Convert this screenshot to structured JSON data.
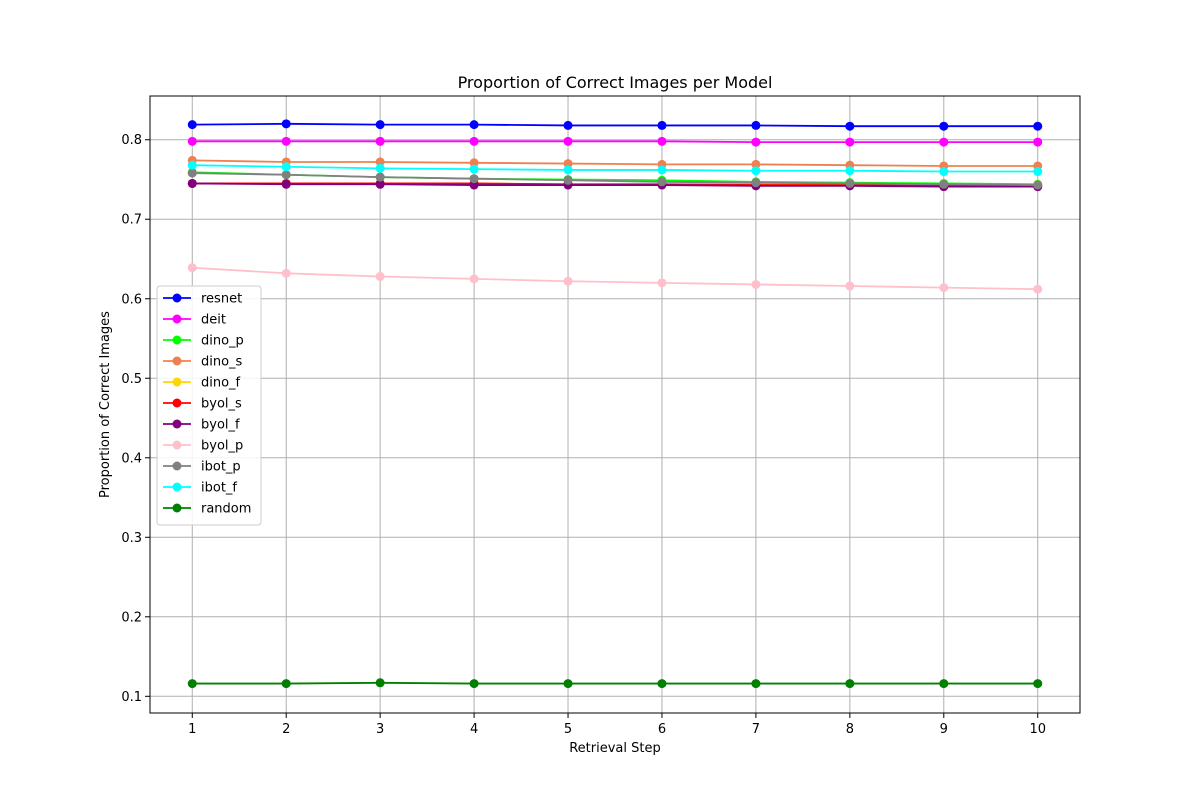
{
  "chart_data": {
    "type": "line",
    "title": "Proportion of Correct Images per Model",
    "xlabel": "Retrieval Step",
    "ylabel": "Proportion of Correct Images",
    "x": [
      1,
      2,
      3,
      4,
      5,
      6,
      7,
      8,
      9,
      10
    ],
    "xticks": [
      "1",
      "2",
      "3",
      "4",
      "5",
      "6",
      "7",
      "8",
      "9",
      "10"
    ],
    "yticks": [
      "0.1",
      "0.2",
      "0.3",
      "0.4",
      "0.5",
      "0.6",
      "0.7",
      "0.8"
    ],
    "xlim": [
      0.55,
      10.45
    ],
    "ylim": [
      0.079,
      0.855
    ],
    "grid": true,
    "legend_position": "center-left",
    "series": [
      {
        "name": "resnet",
        "color": "#0000ff",
        "values": [
          0.819,
          0.82,
          0.819,
          0.819,
          0.818,
          0.818,
          0.818,
          0.817,
          0.817,
          0.817
        ]
      },
      {
        "name": "deit",
        "color": "#ff00ff",
        "values": [
          0.798,
          0.798,
          0.798,
          0.798,
          0.798,
          0.798,
          0.797,
          0.797,
          0.797,
          0.797
        ]
      },
      {
        "name": "dino_p",
        "color": "#00ff00",
        "values": [
          0.759,
          0.756,
          0.753,
          0.751,
          0.75,
          0.749,
          0.747,
          0.746,
          0.745,
          0.744
        ]
      },
      {
        "name": "dino_s",
        "color": "#f08050",
        "values": [
          0.774,
          0.772,
          0.772,
          0.771,
          0.77,
          0.769,
          0.769,
          0.768,
          0.767,
          0.767
        ]
      },
      {
        "name": "dino_f",
        "color": "#ffd700",
        "values": [
          0.745,
          0.745,
          0.745,
          0.745,
          0.744,
          0.744,
          0.744,
          0.744,
          0.743,
          0.743
        ]
      },
      {
        "name": "byol_s",
        "color": "#ff0000",
        "values": [
          0.745,
          0.745,
          0.745,
          0.745,
          0.744,
          0.744,
          0.743,
          0.743,
          0.742,
          0.742
        ]
      },
      {
        "name": "byol_f",
        "color": "#800080",
        "values": [
          0.745,
          0.744,
          0.744,
          0.743,
          0.743,
          0.743,
          0.742,
          0.742,
          0.741,
          0.741
        ]
      },
      {
        "name": "byol_p",
        "color": "#ffc0cb",
        "values": [
          0.639,
          0.632,
          0.628,
          0.625,
          0.622,
          0.62,
          0.618,
          0.616,
          0.614,
          0.612
        ]
      },
      {
        "name": "ibot_p",
        "color": "#808080",
        "values": [
          0.758,
          0.756,
          0.753,
          0.751,
          0.749,
          0.747,
          0.746,
          0.745,
          0.744,
          0.743
        ]
      },
      {
        "name": "ibot_f",
        "color": "#00ffff",
        "values": [
          0.768,
          0.766,
          0.764,
          0.763,
          0.762,
          0.762,
          0.761,
          0.761,
          0.76,
          0.76
        ]
      },
      {
        "name": "random",
        "color": "#008000",
        "values": [
          0.116,
          0.116,
          0.117,
          0.116,
          0.116,
          0.116,
          0.116,
          0.116,
          0.116,
          0.116
        ]
      }
    ]
  }
}
